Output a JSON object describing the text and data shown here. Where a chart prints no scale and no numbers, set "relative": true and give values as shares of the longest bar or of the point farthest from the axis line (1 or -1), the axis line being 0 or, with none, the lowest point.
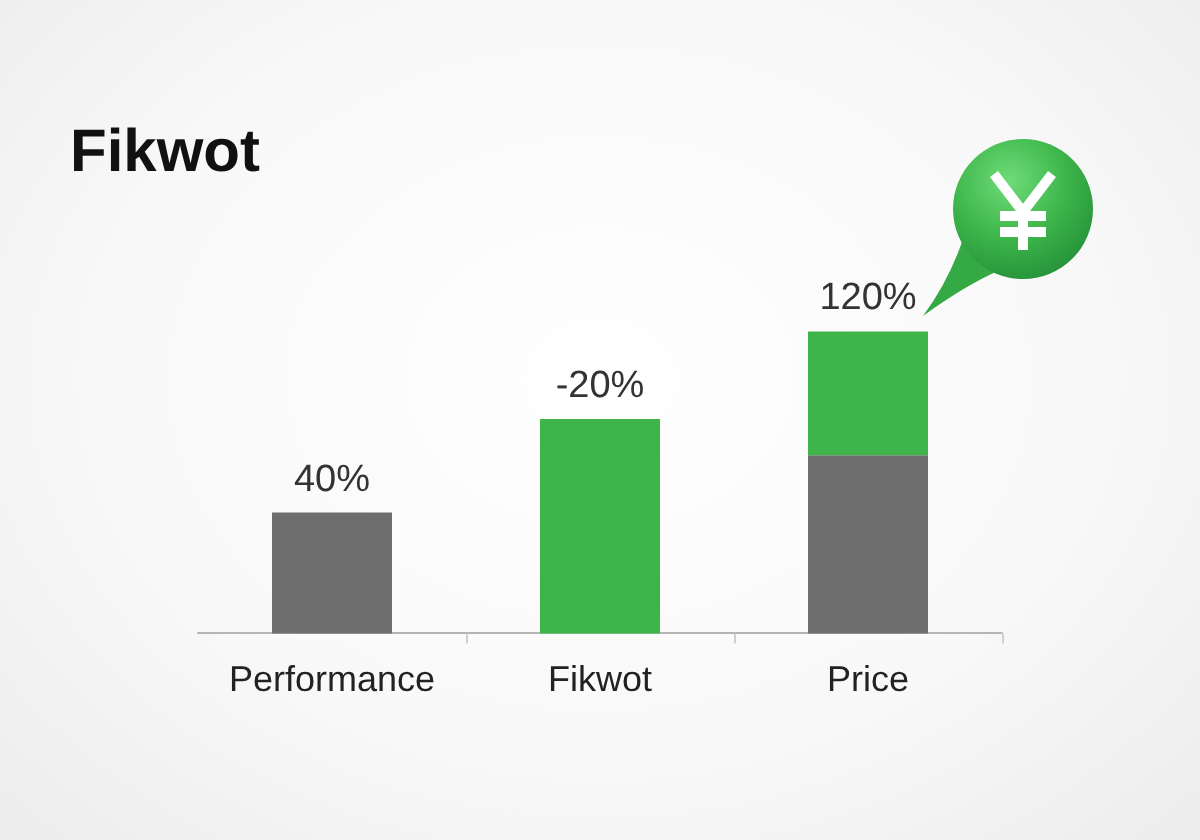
{
  "chart_data": {
    "type": "bar",
    "title": "Fikwot",
    "categories": [
      "Performance",
      "Fikwot",
      "Price"
    ],
    "relative": true,
    "stacked": true,
    "series": [
      {
        "color": "#6e6e6e",
        "values": [
          0.4,
          null,
          0.59
        ]
      },
      {
        "color": "#3db54a",
        "values": [
          null,
          0.71,
          0.41
        ]
      }
    ],
    "annotations": [
      {
        "text": "40%",
        "x": "Performance",
        "y": 0.4
      },
      {
        "text": "-20%",
        "x": "Fikwot",
        "y": 0.71
      },
      {
        "text": "120%",
        "x": "Price",
        "y": 1.0
      }
    ]
  }
}
